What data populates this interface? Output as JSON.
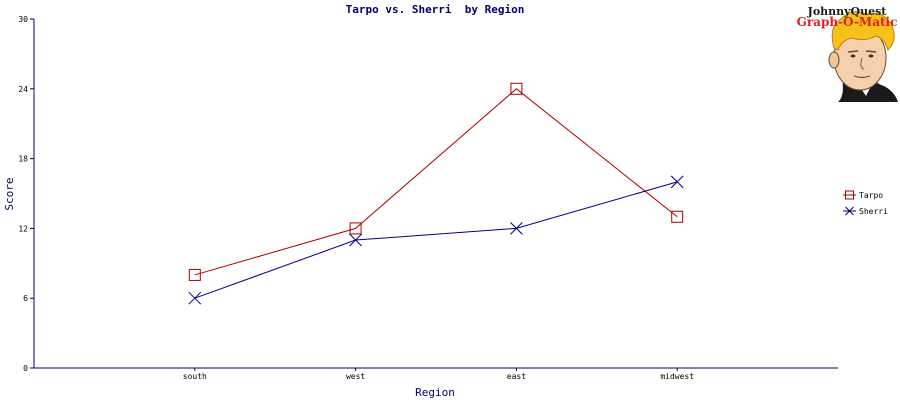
{
  "logo": {
    "line1": "JohnnyQuest",
    "line2": "Graph-O-Matic"
  },
  "chart_data": {
    "type": "line",
    "title": "Tarpo vs. Sherri  by Region",
    "xlabel": "Region",
    "ylabel": "Score",
    "categories": [
      "south",
      "west",
      "east",
      "midwest"
    ],
    "ylim": [
      0,
      30
    ],
    "yticks": [
      0,
      6,
      12,
      18,
      24,
      30
    ],
    "grid": false,
    "legend_position": "right",
    "series": [
      {
        "name": "Tarpo",
        "values": [
          8,
          12,
          24,
          13
        ],
        "color": "#aa0000",
        "marker": "square"
      },
      {
        "name": "Sherri",
        "values": [
          6,
          11,
          12,
          16
        ],
        "color": "#000088",
        "marker": "x"
      }
    ],
    "axis_color": "#000066"
  }
}
